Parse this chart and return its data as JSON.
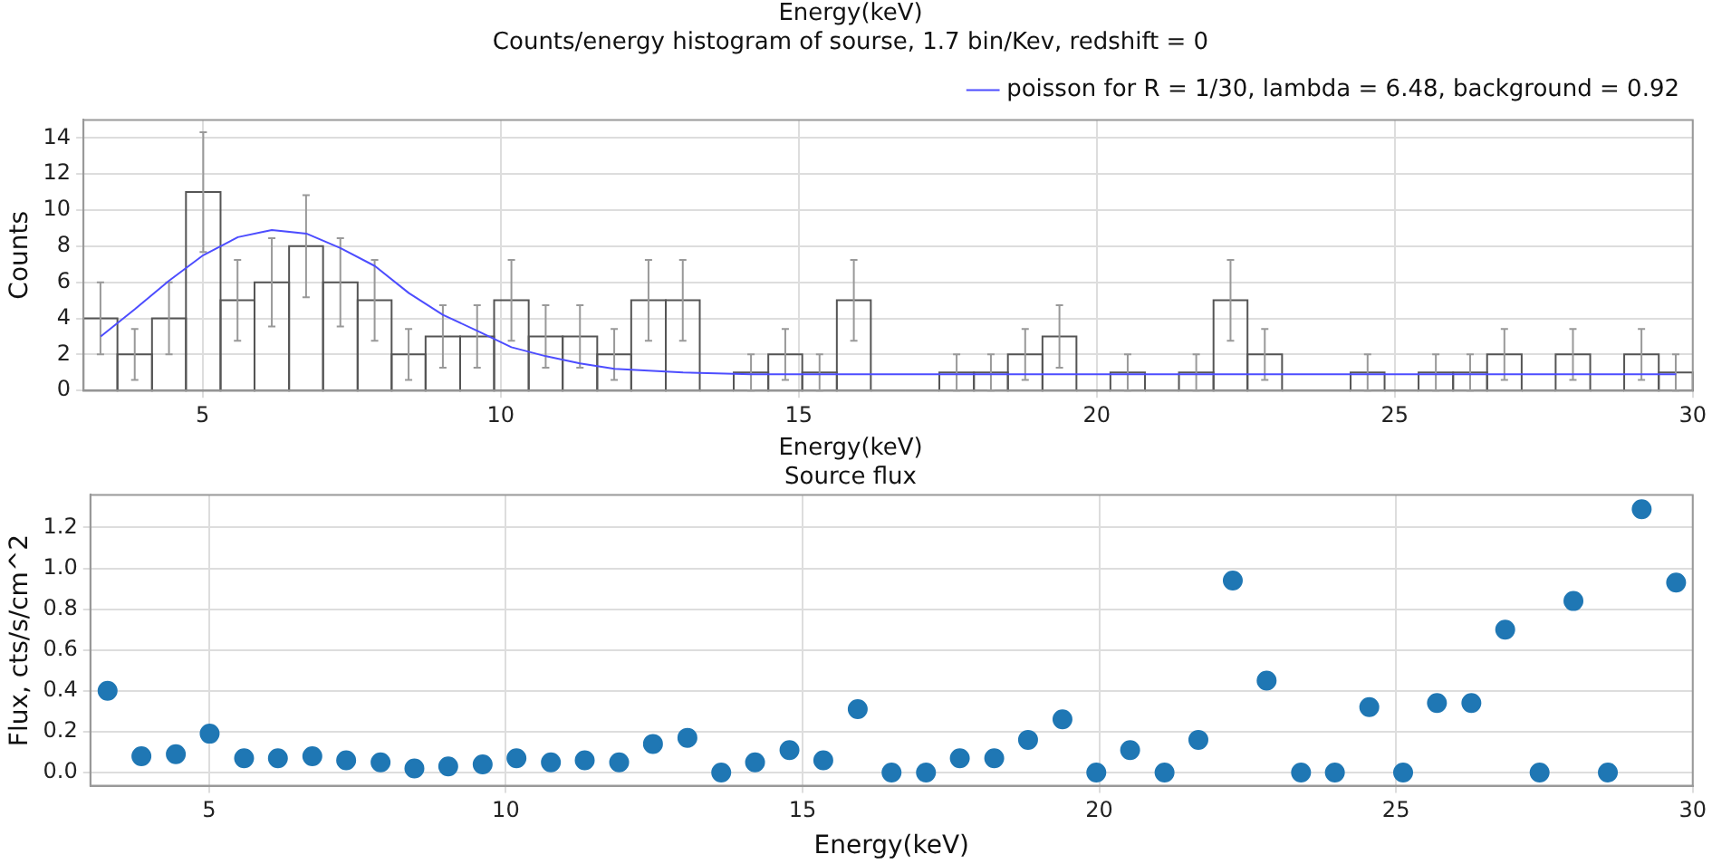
{
  "chart_data": [
    {
      "type": "histogram",
      "title": "Energy(keV)\nCounts/energy histogram of sourse, 1.7 bin/Kev, redshift = 0",
      "ylabel": "Counts",
      "bins": [
        3.0,
        3.57,
        4.15,
        4.72,
        5.3,
        5.87,
        6.45,
        7.02,
        7.6,
        8.17,
        8.74,
        9.32,
        9.89,
        10.47,
        11.04,
        11.62,
        12.19,
        12.77,
        13.34,
        13.91,
        14.49,
        15.06,
        15.64,
        16.21,
        16.79,
        17.36,
        17.94,
        18.51,
        19.09,
        19.66,
        20.23,
        20.81,
        21.38,
        21.96,
        22.53,
        23.11,
        23.68,
        24.26,
        24.83,
        25.4,
        25.98,
        26.55,
        27.13,
        27.7,
        28.28,
        28.85,
        29.43,
        30.0
      ],
      "values": [
        4,
        2,
        4,
        11,
        5,
        6,
        8,
        6,
        5,
        2,
        3,
        3,
        5,
        3,
        3,
        2,
        5,
        5,
        0,
        1,
        2,
        1,
        5,
        0,
        0,
        1,
        1,
        2,
        3,
        0,
        1,
        0,
        1,
        5,
        2,
        0,
        0,
        1,
        0,
        1,
        1,
        2,
        0,
        2,
        0,
        2,
        1
      ],
      "errors": [
        2,
        1.41,
        2,
        3.32,
        2.24,
        2.45,
        2.83,
        2.45,
        2.24,
        1.41,
        1.73,
        1.73,
        2.24,
        1.73,
        1.73,
        1.41,
        2.24,
        2.24,
        null,
        1,
        1.41,
        1,
        2.24,
        null,
        null,
        1,
        1,
        1.41,
        1.73,
        null,
        1,
        null,
        1,
        2.24,
        1.41,
        null,
        null,
        1,
        null,
        1,
        1,
        1.41,
        null,
        1.41,
        null,
        1.41,
        1
      ],
      "color": "#555555",
      "series": [
        {
          "type": "line",
          "name": "poisson for R = 1/30, lambda = 6.48, background = 0.92",
          "color": "#4d4dff",
          "x": [
            3.29,
            3.86,
            4.44,
            5.01,
            5.59,
            6.16,
            6.74,
            7.31,
            7.89,
            8.46,
            9.03,
            9.61,
            10.18,
            10.76,
            11.33,
            11.91,
            12.48,
            13.06,
            14.2,
            16.5,
            29.72
          ],
          "values": [
            3.0,
            4.5,
            6.1,
            7.5,
            8.5,
            8.9,
            8.7,
            7.9,
            6.9,
            5.4,
            4.2,
            3.3,
            2.4,
            1.9,
            1.5,
            1.2,
            1.1,
            1.0,
            0.9,
            0.9,
            0.9
          ]
        }
      ],
      "xlim": [
        3,
        30
      ],
      "xticks": [
        5,
        10,
        15,
        20,
        25,
        30
      ],
      "ylim": [
        0,
        15
      ],
      "yticks": [
        0,
        2,
        4,
        6,
        8,
        10,
        12,
        14
      ],
      "grid": true,
      "legend": "top right",
      "marker": "none"
    },
    {
      "type": "scatter",
      "title": "Energy(keV)\nSource flux",
      "xlabel": "Energy(keV)",
      "ylabel": "Flux, cts/s/cm^2",
      "color": "#1f77b4",
      "marker": "circle",
      "x": [
        3.29,
        3.86,
        4.44,
        5.01,
        5.59,
        6.16,
        6.74,
        7.31,
        7.89,
        8.46,
        9.03,
        9.61,
        10.18,
        10.76,
        11.33,
        11.91,
        12.48,
        13.06,
        13.63,
        14.2,
        14.78,
        15.35,
        15.93,
        16.5,
        17.08,
        17.65,
        18.23,
        18.8,
        19.38,
        19.95,
        20.52,
        21.1,
        21.67,
        22.25,
        22.82,
        23.4,
        23.97,
        24.55,
        25.12,
        25.69,
        26.27,
        26.84,
        27.42,
        27.99,
        28.57,
        29.14,
        29.72
      ],
      "values": [
        0.4,
        0.08,
        0.09,
        0.19,
        0.07,
        0.07,
        0.08,
        0.06,
        0.05,
        0.02,
        0.03,
        0.04,
        0.07,
        0.05,
        0.06,
        0.05,
        0.14,
        0.17,
        0,
        0.05,
        0.11,
        0.06,
        0.31,
        0,
        0,
        0.07,
        0.07,
        0.16,
        0.26,
        0,
        0.11,
        0,
        0.16,
        0.94,
        0.45,
        0,
        0,
        0.32,
        0,
        0.34,
        0.34,
        0.7,
        0,
        0.84,
        0,
        1.29,
        0.93
      ],
      "xlim": [
        3,
        30
      ],
      "xticks": [
        5,
        10,
        15,
        20,
        25,
        30
      ],
      "ylim": [
        -0.065,
        1.36
      ],
      "yticks": [
        {
          "value": 0,
          "label": "0.0"
        },
        {
          "value": 0.2,
          "label": "0.2"
        },
        {
          "value": 0.4,
          "label": "0.4"
        },
        {
          "value": 0.6,
          "label": "0.6"
        },
        {
          "value": 0.8,
          "label": "0.8"
        },
        {
          "value": 1.0,
          "label": "1.0"
        },
        {
          "value": 1.2,
          "label": "1.2"
        }
      ],
      "grid": true
    }
  ]
}
